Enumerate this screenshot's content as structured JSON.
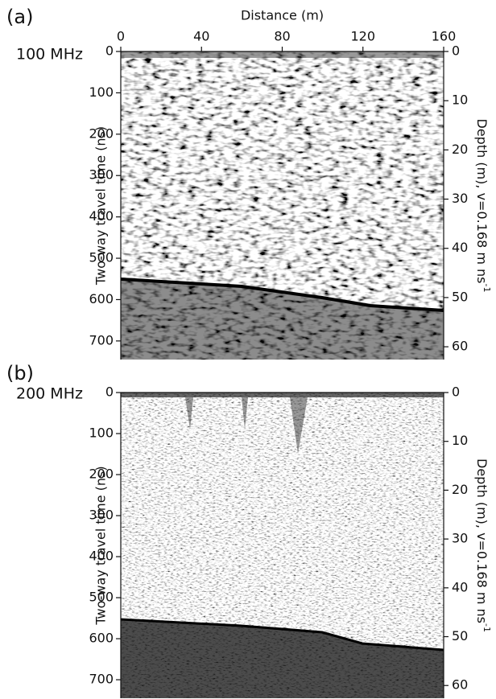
{
  "chart_data": [
    {
      "type": "radargram",
      "panel_label": "(a)",
      "frequency_label": "100 MHz",
      "xlabel": "Distance (m)",
      "ylabel": "Two-way travel time (ns)",
      "y2label": "Depth (m), v=0.168 m ns",
      "y2label_superscript": "-1",
      "xlim": [
        0,
        160
      ],
      "xticks": [
        0,
        40,
        80,
        120,
        160
      ],
      "ylim": [
        0,
        745
      ],
      "yticks": [
        0,
        100,
        200,
        300,
        400,
        500,
        600,
        700
      ],
      "y2lim": [
        0,
        62.6
      ],
      "y2ticks": [
        0,
        10,
        20,
        30,
        40,
        50,
        60
      ]
    },
    {
      "type": "radargram",
      "panel_label": "(b)",
      "frequency_label": "200 MHz",
      "ylabel": "Two-way travel time (ns)",
      "y2label": "Depth (m), v=0.168 m ns",
      "y2label_superscript": "-1",
      "xlim": [
        0,
        160
      ],
      "ylim": [
        0,
        745
      ],
      "yticks": [
        0,
        100,
        200,
        300,
        400,
        500,
        600,
        700
      ],
      "y2lim": [
        0,
        62.6
      ],
      "y2ticks": [
        0,
        10,
        20,
        30,
        40,
        50,
        60
      ]
    }
  ]
}
